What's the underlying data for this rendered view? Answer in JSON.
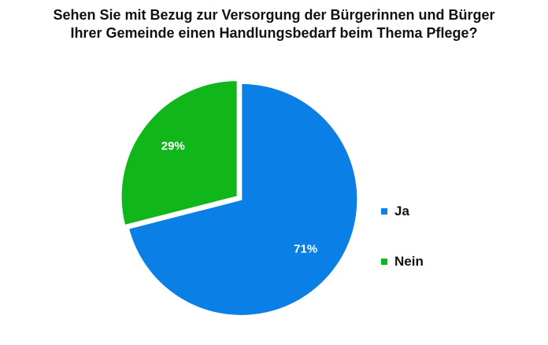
{
  "chart_data": {
    "type": "pie",
    "title": "Sehen Sie mit Bezug zur Versorgung der Bürgerinnen und Bürger Ihrer Gemeinde einen Handlungsbedarf beim Thema Pflege?",
    "title_lines": [
      "Sehen Sie mit Bezug zur Versorgung der Bürgerinnen und Bürger",
      "Ihrer Gemeinde einen Handlungsbedarf beim Thema Pflege?"
    ],
    "slices": [
      {
        "name": "Ja",
        "value": 71,
        "label": "71%",
        "color": "#0a7fe6"
      },
      {
        "name": "Nein",
        "value": 29,
        "label": "29%",
        "color": "#11b61b"
      }
    ],
    "legend": "right",
    "start_angle_deg": 0,
    "direction": "clockwise"
  }
}
